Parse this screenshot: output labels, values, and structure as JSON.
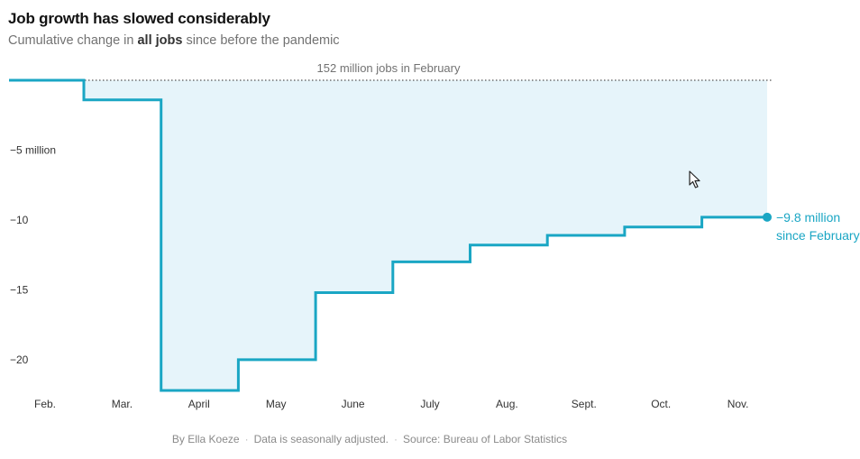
{
  "header": {
    "title": "Job growth has slowed considerably",
    "subtitle_pre": "Cumulative change in ",
    "subtitle_bold": "all jobs",
    "subtitle_post": " since before the pandemic"
  },
  "footer": {
    "byline": "By Ella Koeze",
    "note": "Data is seasonally adjusted.",
    "source": "Source: Bureau of Labor Statistics"
  },
  "colors": {
    "line": "#1aa6c4",
    "fill": "#e6f4fa",
    "baseline": "#555555"
  },
  "chart_data": {
    "type": "line",
    "step": true,
    "categories": [
      "Feb.",
      "Mar.",
      "April",
      "May",
      "June",
      "July",
      "Aug.",
      "Sept.",
      "Oct.",
      "Nov."
    ],
    "series": [
      {
        "values": [
          0,
          -1.4,
          -22.2,
          -20.0,
          -15.2,
          -13.0,
          -11.8,
          -11.1,
          -10.5,
          -9.8
        ]
      }
    ],
    "ylim": [
      -22.2,
      0
    ],
    "yticks": [
      -5,
      -10,
      -15,
      -20
    ],
    "ytick_labels": [
      "−5 million",
      "−10",
      "−15",
      "−20"
    ],
    "reference_line": {
      "value": 0,
      "label": "152 million jobs in February"
    },
    "end_annotation": [
      "−9.8 million",
      "since February"
    ],
    "grid": false
  }
}
